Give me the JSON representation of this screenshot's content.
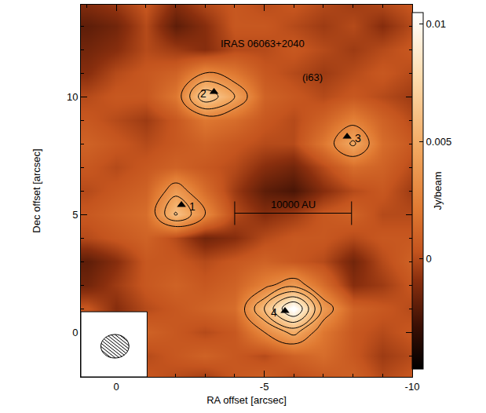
{
  "chart_data": {
    "type": "heatmap",
    "title": "IRAS 06063+2040",
    "subtitle": "(i63)",
    "x_label": "RA offset [arcsec]",
    "y_label": "Dec offset [arcsec]",
    "colorbar_label": "Jy/beam",
    "xlim": [
      1.2,
      -10
    ],
    "xticks": [
      0,
      -5,
      -10
    ],
    "ylim": [
      -1.9,
      13.9
    ],
    "yticks": [
      0,
      5,
      10
    ],
    "zlim": [
      -0.0047,
      0.0105
    ],
    "zticks": [
      0,
      0.005,
      0.01
    ],
    "contour_levels": [
      0.003,
      0.0045,
      0.006,
      0.0075,
      0.009
    ],
    "x": [
      1,
      0,
      -1,
      -2,
      -3,
      -4,
      -5,
      -6,
      -7,
      -8,
      -9,
      -10
    ],
    "y": [
      -2,
      -1,
      0,
      1,
      2,
      3,
      4,
      5,
      6,
      7,
      8,
      9,
      10,
      11,
      12,
      13,
      14
    ],
    "z": [
      [
        0.0005,
        0.001,
        0.0005,
        0.0,
        -0.0005,
        0.0005,
        0.001,
        0.0,
        0.0005,
        0.001,
        0.0,
        0.0005
      ],
      [
        0.001,
        0.0005,
        0.0,
        0.0005,
        0.001,
        0.0005,
        0.0,
        0.001,
        0.0015,
        0.0005,
        -0.0005,
        0.0
      ],
      [
        0.0,
        0.0005,
        0.001,
        0.0005,
        0.0,
        0.0005,
        0.003,
        0.005,
        0.002,
        0.0005,
        0.0,
        0.0005
      ],
      [
        0.0005,
        -0.001,
        0.0,
        0.0005,
        0.001,
        0.0015,
        0.006,
        0.011,
        0.004,
        0.001,
        0.0005,
        0.0
      ],
      [
        -0.0015,
        -0.0005,
        0.0005,
        0.001,
        0.0005,
        0.001,
        0.0025,
        0.004,
        0.0015,
        -0.001,
        -0.0005,
        0.0005
      ],
      [
        -0.002,
        -0.001,
        0.0005,
        0.0005,
        0.0,
        0.0005,
        0.001,
        0.0005,
        0.0,
        -0.0015,
        0.0,
        0.001
      ],
      [
        0.0,
        0.0005,
        0.001,
        0.0,
        -0.0015,
        -0.001,
        0.0,
        0.0005,
        0.0005,
        0.0,
        0.0005,
        0.0005
      ],
      [
        0.0005,
        0.001,
        0.0015,
        0.0062,
        0.003,
        0.0,
        -0.001,
        -0.0005,
        0.0005,
        0.001,
        0.0,
        0.0
      ],
      [
        0.0,
        0.0005,
        0.001,
        0.004,
        0.0015,
        -0.0005,
        -0.002,
        -0.0025,
        -0.001,
        0.0,
        0.0005,
        -0.0005
      ],
      [
        0.0005,
        0.0,
        0.0005,
        0.001,
        0.0005,
        0.0,
        -0.001,
        -0.0015,
        0.0,
        0.0015,
        0.001,
        0.0
      ],
      [
        0.001,
        0.0005,
        0.0,
        0.0005,
        0.001,
        0.0005,
        0.0,
        0.0,
        0.002,
        0.0048,
        0.0015,
        0.0005
      ],
      [
        0.0005,
        0.0,
        -0.0005,
        0.0005,
        0.002,
        0.0015,
        0.0005,
        0.0,
        0.001,
        0.0025,
        0.001,
        0.0
      ],
      [
        0.0,
        0.0005,
        0.0005,
        0.002,
        0.0072,
        0.0045,
        0.001,
        0.0005,
        0.0,
        0.0005,
        0.0,
        -0.0005
      ],
      [
        -0.001,
        0.0,
        0.0005,
        0.001,
        0.003,
        0.002,
        0.0005,
        0.0,
        -0.0005,
        0.0,
        0.0005,
        0.0
      ],
      [
        -0.0015,
        -0.001,
        0.0,
        -0.0005,
        -0.001,
        0.0,
        0.0,
        0.0005,
        0.0,
        -0.0005,
        0.0,
        0.0005
      ],
      [
        -0.002,
        -0.0015,
        0.0,
        -0.002,
        -0.001,
        0.0005,
        0.0005,
        0.0,
        -0.0005,
        0.0,
        -0.001,
        0.0
      ],
      [
        -0.001,
        -0.0005,
        0.0005,
        -0.001,
        0.0,
        0.0005,
        0.0,
        0.0005,
        0.0,
        -0.0005,
        0.0,
        0.0005
      ]
    ],
    "sources": [
      {
        "label": "1",
        "x": -2.2,
        "y": 5.4
      },
      {
        "label": "2",
        "x": -3.3,
        "y": 10.2
      },
      {
        "label": "3",
        "x": -7.8,
        "y": 8.3
      },
      {
        "label": "4",
        "x": -5.7,
        "y": 0.9
      }
    ],
    "marker": "triangle-up",
    "scale_bar": {
      "label": "10000 AU",
      "x": [
        -4.0,
        -7.95
      ],
      "y": 5.05
    },
    "beam": {
      "x": 0.05,
      "y": -0.6,
      "width": 0.95,
      "height": 1.0
    }
  }
}
